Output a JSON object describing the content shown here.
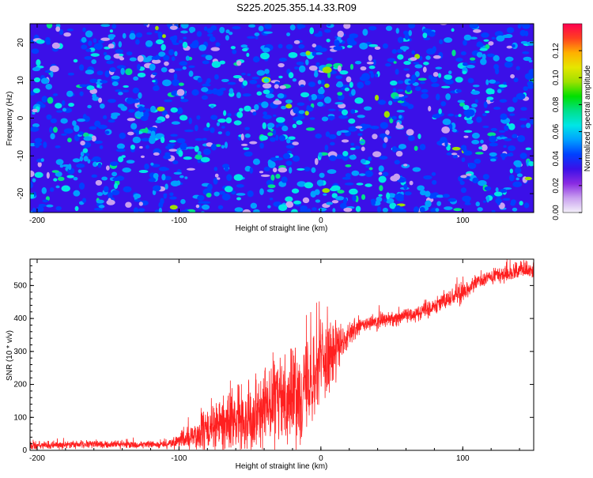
{
  "title": "S225.2025.355.14.33.R09",
  "chart_data": [
    {
      "type": "heatmap",
      "title": "S225.2025.355.14.33.R09",
      "xlabel": "Height of straight line (km)",
      "ylabel": "Frequency (Hz)",
      "xlim": [
        -205,
        150
      ],
      "ylim": [
        -25,
        25
      ],
      "xticks": [
        -200,
        -100,
        0,
        100
      ],
      "yticks": [
        -20,
        -10,
        0,
        10,
        20
      ],
      "grid": false,
      "colorbar": {
        "label": "Normalized spectral amplitude",
        "range": [
          0,
          0.14
        ],
        "ticks": [
          "0.00",
          "0.02",
          "0.04",
          "0.06",
          "0.08",
          "0.10",
          "0.12"
        ],
        "colors": [
          "#f4f0fa",
          "#c9a0ef",
          "#8a2be2",
          "#3b10e8",
          "#0040ff",
          "#00a0ff",
          "#00e6e6",
          "#00e08a",
          "#00e000",
          "#9ee000",
          "#e6e600",
          "#ffb000",
          "#ff4020",
          "#ff0050"
        ]
      },
      "background_level": 0.03,
      "blob_levels": [
        0.04,
        0.05,
        0.06,
        0.08,
        0.1
      ]
    },
    {
      "type": "line",
      "xlabel": "Height of straight line (km)",
      "ylabel": "SNR (10 * v/v)",
      "xlim": [
        -205,
        150
      ],
      "ylim": [
        0,
        580
      ],
      "xticks": [
        -200,
        -100,
        0,
        100
      ],
      "yticks": [
        0,
        100,
        200,
        300,
        400,
        500
      ],
      "grid": false,
      "series": [
        {
          "name": "SNR",
          "color": "#ff2020",
          "x": [
            -205,
            -190,
            -170,
            -150,
            -130,
            -115,
            -105,
            -95,
            -85,
            -75,
            -65,
            -55,
            -45,
            -35,
            -28,
            -20,
            -15,
            -10,
            -5,
            0,
            5,
            10,
            15,
            20,
            25,
            30,
            40,
            50,
            60,
            70,
            80,
            90,
            100,
            110,
            120,
            130,
            140,
            150
          ],
          "y": [
            15,
            15,
            18,
            18,
            17,
            18,
            20,
            35,
            50,
            70,
            85,
            100,
            120,
            140,
            160,
            170,
            180,
            200,
            230,
            270,
            290,
            300,
            320,
            350,
            370,
            380,
            390,
            400,
            410,
            420,
            440,
            460,
            480,
            510,
            525,
            535,
            545,
            545
          ],
          "noise": [
            10,
            10,
            10,
            10,
            10,
            10,
            12,
            30,
            45,
            60,
            70,
            80,
            90,
            100,
            110,
            110,
            120,
            120,
            120,
            120,
            90,
            70,
            40,
            30,
            25,
            20,
            20,
            20,
            20,
            20,
            20,
            25,
            25,
            20,
            20,
            20,
            20,
            20
          ]
        }
      ]
    }
  ]
}
